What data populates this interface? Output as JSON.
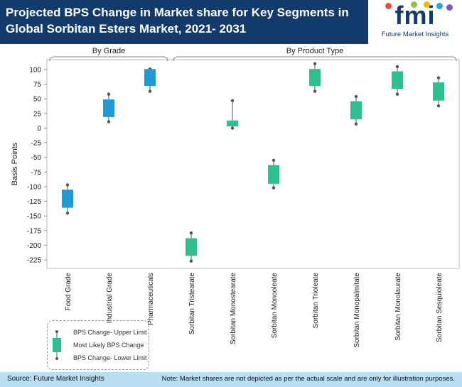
{
  "header": {
    "title": "Projected BPS Change in Market share for Key Segments in Global Sorbitan Esters Market, 2021- 2031"
  },
  "logo": {
    "brand": "fmi",
    "subtitle": "Future Market Insights",
    "dot_colors": [
      "#e94e3d",
      "#8bc34a",
      "#f5b800",
      "#29a3db",
      "#7e57c2"
    ]
  },
  "footer": {
    "source": "Source: Future Market Insights",
    "note": "Note: Market shares are not depicted as per the actual scale and are only for illustration purposes."
  },
  "legend": {
    "upper": "BPS Change- Upper Limit",
    "likely": "Most Likely BPS Change",
    "lower": "BPS Change- Lower Limit"
  },
  "chart_data": {
    "type": "box",
    "title": "",
    "xlabel": "",
    "ylabel": "Basis Points",
    "ylim": [
      -225,
      100
    ],
    "yticks": [
      100,
      75,
      50,
      25,
      0,
      -25,
      -50,
      -75,
      -100,
      -125,
      -150,
      -175,
      -200,
      -225
    ],
    "groups": [
      {
        "label": "By Grade",
        "categories": [
          "Food Grade",
          "Industrial Grade",
          "Pharmaceuticals"
        ],
        "color": "#1f9ad6"
      },
      {
        "label": "By Product Type",
        "categories": [
          "Sorbitan Tristearate",
          "Sorbitan Monostearate",
          "Sorbitan Monooleate",
          "Sorbitan Trioleate",
          "Sorbitan Monopalmitate",
          "Sorbitan Monolaurate",
          "Sorbitan Sesquioleate"
        ],
        "color": "#2dbf8e"
      }
    ],
    "categories": [
      "Food Grade",
      "Industrial Grade",
      "Pharmaceuticals",
      "Sorbitan Tristearate",
      "Sorbitan Monostearate",
      "Sorbitan Monooleate",
      "Sorbitan Trioleate",
      "Sorbitan Monopalmitate",
      "Sorbitan Monolaurate",
      "Sorbitan Sesquioleate"
    ],
    "series": [
      {
        "upper": [
          -97,
          58,
          101,
          -179,
          47,
          -55,
          110,
          54,
          105,
          86
        ],
        "box_top": [
          -105,
          49,
          101,
          -188,
          13,
          -63,
          101,
          46,
          97,
          78
        ],
        "box_bottom": [
          -136,
          19,
          72,
          -218,
          3,
          -95,
          72,
          15,
          67,
          47
        ],
        "lower": [
          -145,
          11,
          63,
          -227,
          0,
          -102,
          63,
          7,
          58,
          38
        ]
      }
    ]
  }
}
